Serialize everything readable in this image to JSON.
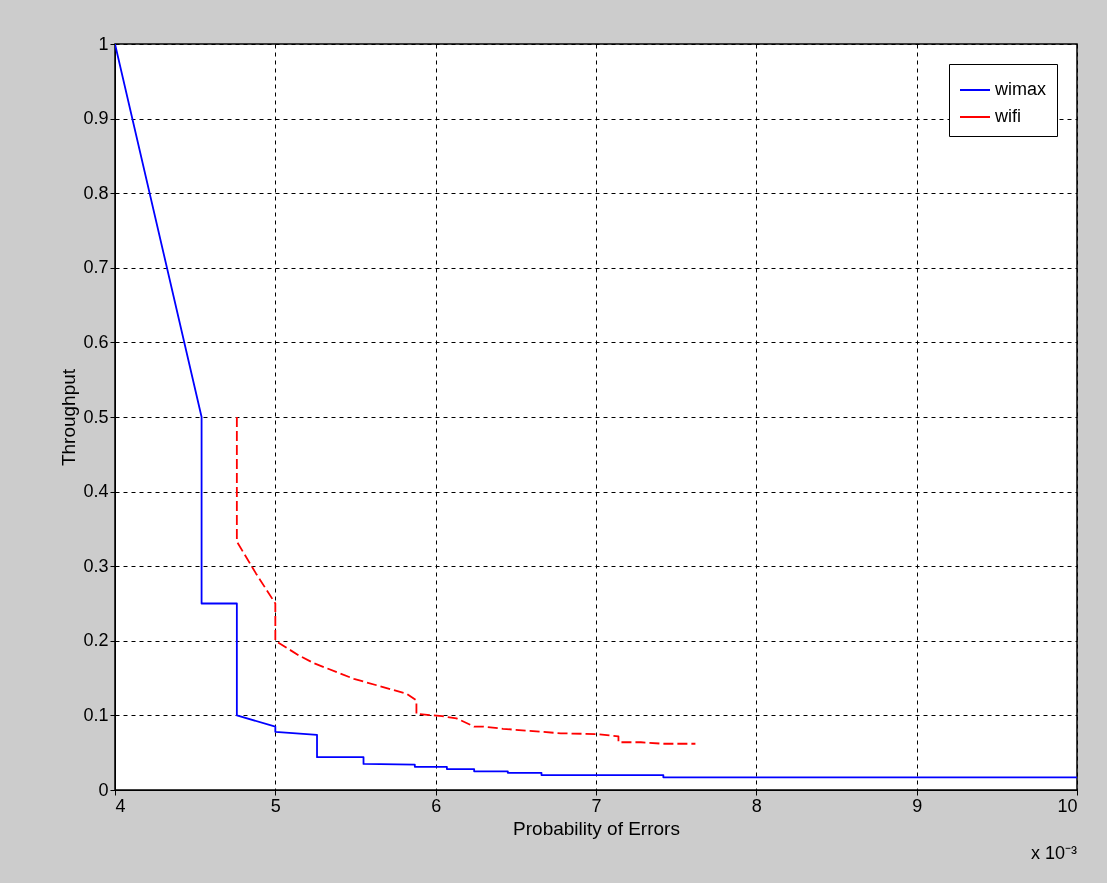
{
  "chart_data": {
    "type": "line",
    "xlabel": "Probability of Errors",
    "ylabel": "Throughput",
    "annotations": [
      "x 10⁻³"
    ],
    "series": [
      {
        "name": "wimax",
        "color": "#0000ff",
        "line_style": "solid",
        "x": [
          4,
          4.54,
          4.54,
          4.76,
          4.76,
          5.0,
          5.0,
          5.26,
          5.26,
          5.55,
          5.55,
          5.87,
          5.87,
          6.07,
          6.07,
          6.24,
          6.24,
          6.45,
          6.45,
          6.66,
          6.66,
          7.42,
          7.42,
          10
        ],
        "values": [
          1,
          0.5,
          0.25,
          0.25,
          0.1,
          0.085,
          0.078,
          0.074,
          0.044,
          0.044,
          0.035,
          0.034,
          0.031,
          0.031,
          0.028,
          0.028,
          0.025,
          0.025,
          0.023,
          0.023,
          0.02,
          0.02,
          0.017,
          0.017
        ]
      },
      {
        "name": "wifi",
        "color": "#ff0000",
        "line_style": "dashed",
        "x": [
          4.76,
          4.76,
          4.88,
          5.0,
          5.0,
          5.15,
          5.24,
          5.49,
          5.82,
          5.88,
          5.88,
          6.04,
          6.13,
          6.24,
          6.3,
          6.42,
          6.66,
          6.78,
          7.0,
          7.14,
          7.14,
          7.28,
          7.42,
          7.62
        ],
        "values": [
          0.5,
          0.333,
          0.29,
          0.25,
          0.2,
          0.18,
          0.17,
          0.149,
          0.129,
          0.12,
          0.102,
          0.099,
          0.096,
          0.085,
          0.085,
          0.082,
          0.078,
          0.076,
          0.075,
          0.072,
          0.064,
          0.064,
          0.062,
          0.062
        ]
      }
    ],
    "xlim": [
      4,
      10
    ],
    "xticks": [
      4,
      5,
      6,
      7,
      8,
      9,
      10
    ],
    "ylim": [
      0,
      1
    ],
    "yticks": [
      {
        "value": 0,
        "label": "0"
      },
      0.1,
      0.2,
      0.3,
      0.4,
      0.5,
      0.6,
      0.7,
      0.8,
      0.9,
      {
        "value": 1,
        "label": "1"
      }
    ],
    "grid": true,
    "legend": "top right"
  }
}
